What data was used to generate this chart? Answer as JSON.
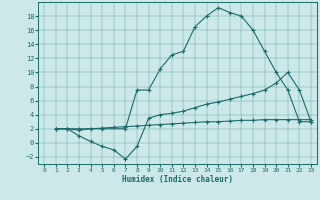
{
  "xlabel": "Humidex (Indice chaleur)",
  "bg_color": "#cce8e8",
  "line_color": "#1a6b6b",
  "line1_x": [
    1,
    2,
    3,
    5,
    7,
    8,
    9,
    10,
    11,
    12,
    13,
    14,
    15,
    16,
    17,
    18,
    19,
    20,
    21,
    22,
    23
  ],
  "line1_y": [
    2,
    2,
    2,
    2,
    2,
    7.5,
    7.5,
    10.5,
    12.5,
    13,
    16.5,
    18,
    19.2,
    18.5,
    18,
    16,
    13,
    10,
    7.5,
    3,
    3
  ],
  "line2_x": [
    1,
    2,
    3,
    4,
    5,
    6,
    7,
    8,
    9,
    10,
    11,
    12,
    13,
    14,
    15,
    16,
    17,
    18,
    19,
    20,
    21,
    22,
    23
  ],
  "line2_y": [
    2,
    2,
    1,
    0.2,
    -0.5,
    -1,
    -2.3,
    -0.5,
    3.5,
    4,
    4.2,
    4.5,
    5,
    5.5,
    5.8,
    6.2,
    6.6,
    7.0,
    7.5,
    8.5,
    10,
    7.5,
    3
  ],
  "line3_x": [
    1,
    2,
    3,
    4,
    5,
    6,
    7,
    8,
    9,
    10,
    11,
    12,
    13,
    14,
    15,
    16,
    17,
    18,
    19,
    20,
    21,
    22,
    23
  ],
  "line3_y": [
    2,
    2,
    1.8,
    2.0,
    2.1,
    2.2,
    2.3,
    2.4,
    2.5,
    2.6,
    2.7,
    2.8,
    2.9,
    3.0,
    3.0,
    3.1,
    3.2,
    3.2,
    3.3,
    3.3,
    3.3,
    3.3,
    3.3
  ],
  "xlim": [
    -0.5,
    23.5
  ],
  "ylim": [
    -3,
    20
  ],
  "yticks": [
    -2,
    0,
    2,
    4,
    6,
    8,
    10,
    12,
    14,
    16,
    18
  ],
  "xticks": [
    0,
    1,
    2,
    3,
    4,
    5,
    6,
    7,
    8,
    9,
    10,
    11,
    12,
    13,
    14,
    15,
    16,
    17,
    18,
    19,
    20,
    21,
    22,
    23
  ]
}
